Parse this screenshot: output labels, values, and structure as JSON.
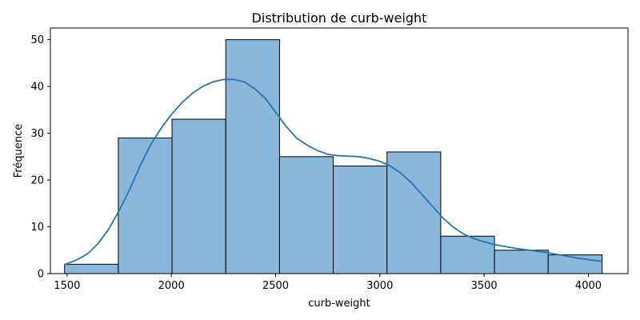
{
  "chart_data": {
    "type": "bar",
    "title": "Distribution de curb-weight",
    "xlabel": "curb-weight",
    "ylabel": "Fréquence",
    "xlim": [
      1420,
      4190
    ],
    "ylim": [
      0,
      52.5
    ],
    "xticks": [
      1500,
      2000,
      2500,
      3000,
      3500,
      4000
    ],
    "yticks": [
      0,
      10,
      20,
      30,
      40,
      50
    ],
    "grid": false,
    "legend": "none",
    "bins": [
      {
        "x0": 1488,
        "x1": 1745.7,
        "count": 2
      },
      {
        "x0": 1745.7,
        "x1": 2003.4,
        "count": 29
      },
      {
        "x0": 2003.4,
        "x1": 2261.1,
        "count": 33
      },
      {
        "x0": 2261.1,
        "x1": 2518.8,
        "count": 50
      },
      {
        "x0": 2518.8,
        "x1": 2776.5,
        "count": 25
      },
      {
        "x0": 2776.5,
        "x1": 3034.2,
        "count": 23
      },
      {
        "x0": 3034.2,
        "x1": 3291.9,
        "count": 26
      },
      {
        "x0": 3291.9,
        "x1": 3549.6,
        "count": 8
      },
      {
        "x0": 3549.6,
        "x1": 3807.3,
        "count": 5
      },
      {
        "x0": 3807.3,
        "x1": 4066,
        "count": 4
      }
    ],
    "kde": {
      "x": [
        1488,
        1550,
        1600,
        1650,
        1700,
        1750,
        1800,
        1850,
        1900,
        1950,
        2000,
        2050,
        2100,
        2150,
        2200,
        2250,
        2300,
        2350,
        2400,
        2450,
        2500,
        2550,
        2600,
        2650,
        2700,
        2750,
        2800,
        2850,
        2900,
        2950,
        3000,
        3050,
        3100,
        3150,
        3200,
        3250,
        3300,
        3350,
        3400,
        3450,
        3500,
        3550,
        3600,
        3650,
        3700,
        3750,
        3800,
        3850,
        3900,
        3950,
        4000,
        4066
      ],
      "y": [
        1.9,
        3,
        4.3,
        6.5,
        9.5,
        13.5,
        18,
        23,
        27.5,
        31,
        34,
        36.5,
        38.5,
        40,
        41,
        41.5,
        41.5,
        41,
        39.5,
        37.5,
        34.5,
        31.5,
        29,
        27.5,
        26.3,
        25.5,
        25.2,
        25.1,
        25,
        24.6,
        24,
        23,
        21.5,
        19.5,
        17,
        14.5,
        12,
        10,
        8.5,
        7.5,
        6.8,
        6.2,
        5.8,
        5.4,
        5.1,
        4.8,
        4.5,
        4.1,
        3.7,
        3.3,
        3,
        2.6
      ]
    },
    "colors": {
      "bar_fill": "#8ab8db",
      "bar_edge": "#000000",
      "kde_line": "#2476b4"
    }
  }
}
